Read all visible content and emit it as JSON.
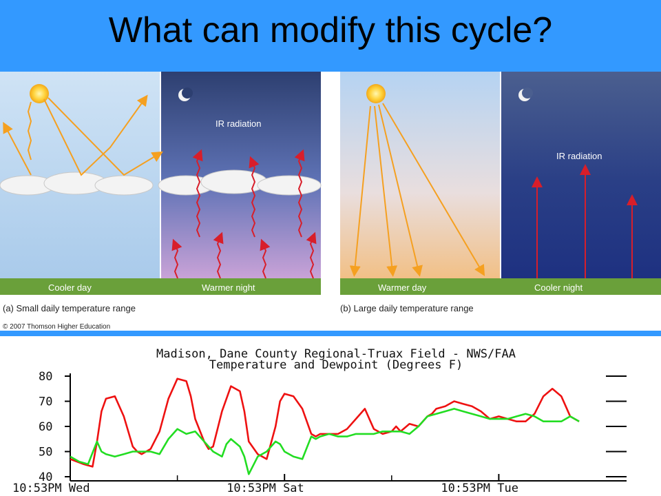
{
  "slide": {
    "title": "What can modify this cycle?",
    "header_color": "#3399ff"
  },
  "illustration": {
    "panel_a": {
      "caption": "(a) Small daily temperature range",
      "day_label": "Cooler day",
      "night_label": "Warmer night",
      "ir_label": "IR radiation"
    },
    "panel_b": {
      "caption": "(b) Large daily temperature range",
      "day_label": "Warmer day",
      "night_label": "Cooler night",
      "ir_label": "IR radiation"
    },
    "credit": "© 2007 Thomson Higher Education",
    "colors": {
      "solar_arrow": "#f5a020",
      "ir_arrow": "#d81e2a"
    }
  },
  "chart_data": {
    "type": "line",
    "title": "Madison, Dane County Regional-Truax Field - NWS/FAA",
    "subtitle": "Temperature and Dewpoint (Degrees F)",
    "xlabel": "",
    "ylabel": "",
    "ylim": [
      40,
      80
    ],
    "yticks": [
      40,
      50,
      60,
      70,
      80
    ],
    "xlim": [
      0,
      120
    ],
    "xticks": [
      {
        "x": 0,
        "label": "10:53PM Wed"
      },
      {
        "x": 48,
        "label": "10:53PM Sat"
      },
      {
        "x": 96,
        "label": "10:53PM Tue"
      }
    ],
    "grid": false,
    "series": [
      {
        "color": "#ee1111",
        "x": [
          0,
          3,
          5,
          6,
          7,
          8,
          10,
          12,
          14,
          15,
          16,
          18,
          20,
          22,
          24,
          26,
          27,
          28,
          30,
          31,
          32,
          34,
          36,
          38,
          39,
          40,
          42,
          43,
          44,
          46,
          47,
          48,
          50,
          52,
          54,
          55,
          56,
          58,
          60,
          62,
          64,
          66,
          68,
          70,
          72,
          73,
          74,
          76,
          78,
          80,
          81,
          82,
          84,
          86,
          88,
          90,
          92,
          94,
          96,
          98,
          100,
          102,
          104,
          106,
          108,
          110,
          111,
          112,
          113,
          114
        ],
        "values": [
          47,
          45,
          44,
          54,
          66,
          71,
          72,
          64,
          52,
          50,
          49,
          51,
          58,
          71,
          79,
          78,
          72,
          63,
          54,
          51,
          52,
          66,
          76,
          74,
          66,
          54,
          49,
          48,
          47,
          60,
          70,
          73,
          72,
          67,
          57,
          56,
          57,
          57,
          57,
          59,
          63,
          67,
          59,
          57,
          58,
          60,
          58,
          61,
          60,
          64,
          65,
          67,
          68,
          70,
          69,
          68,
          66,
          63,
          64,
          63,
          62,
          62,
          65,
          72,
          75,
          72,
          68,
          64,
          63,
          62
        ]
      },
      {
        "color": "#22dd22",
        "x": [
          0,
          2,
          4,
          6,
          7,
          8,
          10,
          12,
          14,
          16,
          18,
          20,
          22,
          24,
          26,
          28,
          30,
          32,
          34,
          35,
          36,
          38,
          39,
          40,
          42,
          44,
          46,
          47,
          48,
          50,
          52,
          54,
          55,
          56,
          58,
          60,
          62,
          64,
          66,
          68,
          70,
          72,
          74,
          76,
          78,
          80,
          82,
          84,
          86,
          88,
          90,
          92,
          94,
          96,
          98,
          100,
          102,
          104,
          106,
          108,
          110,
          112,
          114
        ],
        "values": [
          48,
          46,
          45,
          54,
          50,
          49,
          48,
          49,
          50,
          50,
          50,
          49,
          55,
          59,
          57,
          58,
          54,
          50,
          48,
          53,
          55,
          52,
          48,
          41,
          48,
          50,
          54,
          53,
          50,
          48,
          47,
          56,
          55,
          56,
          57,
          56,
          56,
          57,
          57,
          57,
          58,
          58,
          58,
          57,
          60,
          64,
          65,
          66,
          67,
          66,
          65,
          64,
          63,
          63,
          63,
          64,
          65,
          64,
          62,
          62,
          62,
          64,
          62
        ]
      }
    ]
  }
}
